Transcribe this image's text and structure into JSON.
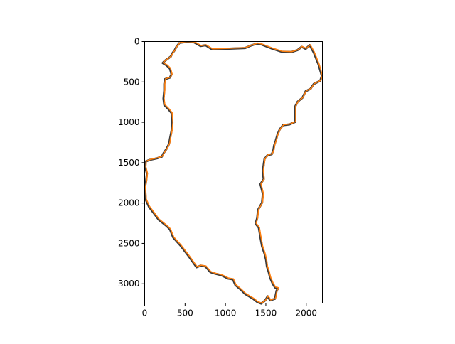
{
  "chart_data": {
    "type": "line",
    "title": "",
    "xlabel": "",
    "ylabel": "",
    "xlim": [
      0,
      2200
    ],
    "ylim": [
      3240,
      0
    ],
    "x_ticks": [
      0,
      500,
      1000,
      1500,
      2000
    ],
    "y_ticks": [
      0,
      500,
      1000,
      1500,
      2000,
      2500,
      3000
    ],
    "x_tick_labels": [
      "0",
      "500",
      "1000",
      "1500",
      "2000"
    ],
    "y_tick_labels": [
      "0",
      "500",
      "1000",
      "1500",
      "2000",
      "2500",
      "3000"
    ],
    "grid": false,
    "legend": false,
    "series": [
      {
        "color": "#3a3a3a",
        "points": [
          [
            440,
            10
          ],
          [
            520,
            0
          ],
          [
            620,
            5
          ],
          [
            700,
            50
          ],
          [
            760,
            40
          ],
          [
            840,
            90
          ],
          [
            1000,
            85
          ],
          [
            1250,
            75
          ],
          [
            1320,
            45
          ],
          [
            1400,
            20
          ],
          [
            1450,
            30
          ],
          [
            1580,
            80
          ],
          [
            1700,
            120
          ],
          [
            1820,
            125
          ],
          [
            1900,
            100
          ],
          [
            1950,
            60
          ],
          [
            2000,
            85
          ],
          [
            2050,
            40
          ],
          [
            2100,
            130
          ],
          [
            2160,
            280
          ],
          [
            2200,
            420
          ],
          [
            2180,
            480
          ],
          [
            2100,
            520
          ],
          [
            2060,
            580
          ],
          [
            2000,
            610
          ],
          [
            1960,
            690
          ],
          [
            1900,
            740
          ],
          [
            1870,
            800
          ],
          [
            1870,
            990
          ],
          [
            1800,
            1020
          ],
          [
            1720,
            1030
          ],
          [
            1680,
            1080
          ],
          [
            1650,
            1150
          ],
          [
            1630,
            1220
          ],
          [
            1610,
            1280
          ],
          [
            1600,
            1340
          ],
          [
            1580,
            1390
          ],
          [
            1530,
            1400
          ],
          [
            1490,
            1450
          ],
          [
            1480,
            1520
          ],
          [
            1470,
            1600
          ],
          [
            1480,
            1700
          ],
          [
            1440,
            1760
          ],
          [
            1470,
            1880
          ],
          [
            1460,
            1990
          ],
          [
            1410,
            2080
          ],
          [
            1400,
            2180
          ],
          [
            1380,
            2250
          ],
          [
            1420,
            2300
          ],
          [
            1440,
            2420
          ],
          [
            1460,
            2530
          ],
          [
            1490,
            2620
          ],
          [
            1510,
            2700
          ],
          [
            1520,
            2780
          ],
          [
            1540,
            2840
          ],
          [
            1560,
            2920
          ],
          [
            1590,
            2990
          ],
          [
            1620,
            3040
          ],
          [
            1660,
            3050
          ],
          [
            1640,
            3080
          ],
          [
            1620,
            3180
          ],
          [
            1560,
            3200
          ],
          [
            1530,
            3150
          ],
          [
            1500,
            3200
          ],
          [
            1450,
            3240
          ],
          [
            1400,
            3220
          ],
          [
            1350,
            3180
          ],
          [
            1250,
            3120
          ],
          [
            1200,
            3070
          ],
          [
            1130,
            3010
          ],
          [
            1100,
            2940
          ],
          [
            1040,
            2930
          ],
          [
            960,
            2890
          ],
          [
            880,
            2870
          ],
          [
            820,
            2850
          ],
          [
            760,
            2780
          ],
          [
            700,
            2770
          ],
          [
            650,
            2790
          ],
          [
            550,
            2650
          ],
          [
            450,
            2520
          ],
          [
            360,
            2420
          ],
          [
            320,
            2320
          ],
          [
            280,
            2280
          ],
          [
            180,
            2200
          ],
          [
            120,
            2120
          ],
          [
            60,
            2040
          ],
          [
            20,
            1950
          ],
          [
            15,
            1860
          ],
          [
            10,
            1800
          ],
          [
            25,
            1720
          ],
          [
            35,
            1630
          ],
          [
            15,
            1550
          ],
          [
            20,
            1480
          ],
          [
            70,
            1460
          ],
          [
            160,
            1440
          ],
          [
            220,
            1420
          ],
          [
            240,
            1380
          ],
          [
            280,
            1320
          ],
          [
            310,
            1260
          ],
          [
            320,
            1200
          ],
          [
            330,
            1150
          ],
          [
            340,
            1100
          ],
          [
            350,
            1000
          ],
          [
            340,
            880
          ],
          [
            300,
            830
          ],
          [
            250,
            780
          ],
          [
            240,
            700
          ],
          [
            250,
            600
          ],
          [
            250,
            520
          ],
          [
            260,
            460
          ],
          [
            320,
            440
          ],
          [
            340,
            400
          ],
          [
            320,
            330
          ],
          [
            280,
            290
          ],
          [
            230,
            260
          ],
          [
            260,
            230
          ],
          [
            290,
            210
          ],
          [
            330,
            180
          ],
          [
            350,
            140
          ],
          [
            380,
            100
          ],
          [
            400,
            60
          ],
          [
            440,
            10
          ]
        ]
      },
      {
        "color": "#ff7f0e",
        "points": [
          [
            440,
            10
          ],
          [
            520,
            0
          ],
          [
            620,
            5
          ],
          [
            700,
            50
          ],
          [
            760,
            40
          ],
          [
            840,
            90
          ],
          [
            1000,
            85
          ],
          [
            1250,
            75
          ],
          [
            1320,
            45
          ],
          [
            1400,
            20
          ],
          [
            1450,
            30
          ],
          [
            1580,
            80
          ],
          [
            1700,
            120
          ],
          [
            1820,
            125
          ],
          [
            1900,
            100
          ],
          [
            1950,
            60
          ],
          [
            2000,
            85
          ],
          [
            2050,
            40
          ],
          [
            2100,
            130
          ],
          [
            2160,
            280
          ],
          [
            2200,
            420
          ],
          [
            2180,
            480
          ],
          [
            2100,
            520
          ],
          [
            2060,
            580
          ],
          [
            2000,
            610
          ],
          [
            1960,
            690
          ],
          [
            1900,
            740
          ],
          [
            1870,
            800
          ],
          [
            1870,
            990
          ],
          [
            1800,
            1020
          ],
          [
            1720,
            1030
          ],
          [
            1680,
            1080
          ],
          [
            1650,
            1150
          ],
          [
            1630,
            1220
          ],
          [
            1610,
            1280
          ],
          [
            1600,
            1340
          ],
          [
            1580,
            1390
          ],
          [
            1530,
            1400
          ],
          [
            1490,
            1450
          ],
          [
            1480,
            1520
          ],
          [
            1470,
            1600
          ],
          [
            1480,
            1700
          ],
          [
            1440,
            1760
          ],
          [
            1470,
            1880
          ],
          [
            1460,
            1990
          ],
          [
            1410,
            2080
          ],
          [
            1400,
            2180
          ],
          [
            1380,
            2250
          ],
          [
            1420,
            2300
          ],
          [
            1440,
            2420
          ],
          [
            1460,
            2530
          ],
          [
            1490,
            2620
          ],
          [
            1510,
            2700
          ],
          [
            1520,
            2780
          ],
          [
            1540,
            2840
          ],
          [
            1560,
            2920
          ],
          [
            1590,
            2990
          ],
          [
            1620,
            3040
          ],
          [
            1660,
            3050
          ],
          [
            1640,
            3080
          ],
          [
            1620,
            3180
          ],
          [
            1560,
            3200
          ],
          [
            1530,
            3150
          ],
          [
            1500,
            3200
          ],
          [
            1450,
            3240
          ],
          [
            1400,
            3220
          ],
          [
            1350,
            3180
          ],
          [
            1250,
            3120
          ],
          [
            1200,
            3070
          ],
          [
            1130,
            3010
          ],
          [
            1100,
            2940
          ],
          [
            1040,
            2930
          ],
          [
            960,
            2890
          ],
          [
            880,
            2870
          ],
          [
            820,
            2850
          ],
          [
            760,
            2780
          ],
          [
            700,
            2770
          ],
          [
            650,
            2790
          ],
          [
            550,
            2650
          ],
          [
            450,
            2520
          ],
          [
            360,
            2420
          ],
          [
            320,
            2320
          ],
          [
            280,
            2280
          ],
          [
            180,
            2200
          ],
          [
            120,
            2120
          ],
          [
            60,
            2040
          ],
          [
            20,
            1950
          ],
          [
            15,
            1860
          ],
          [
            10,
            1800
          ],
          [
            25,
            1720
          ],
          [
            35,
            1630
          ],
          [
            15,
            1550
          ],
          [
            20,
            1480
          ],
          [
            70,
            1460
          ],
          [
            160,
            1440
          ],
          [
            220,
            1420
          ],
          [
            240,
            1380
          ],
          [
            280,
            1320
          ],
          [
            310,
            1260
          ],
          [
            320,
            1200
          ],
          [
            330,
            1150
          ],
          [
            340,
            1100
          ],
          [
            350,
            1000
          ],
          [
            340,
            880
          ],
          [
            300,
            830
          ],
          [
            250,
            780
          ],
          [
            240,
            700
          ],
          [
            250,
            600
          ],
          [
            250,
            520
          ],
          [
            260,
            460
          ],
          [
            320,
            440
          ],
          [
            340,
            400
          ],
          [
            320,
            330
          ],
          [
            280,
            290
          ],
          [
            230,
            260
          ],
          [
            260,
            230
          ],
          [
            290,
            210
          ],
          [
            330,
            180
          ],
          [
            350,
            140
          ],
          [
            380,
            100
          ],
          [
            400,
            60
          ],
          [
            440,
            10
          ]
        ]
      }
    ]
  }
}
